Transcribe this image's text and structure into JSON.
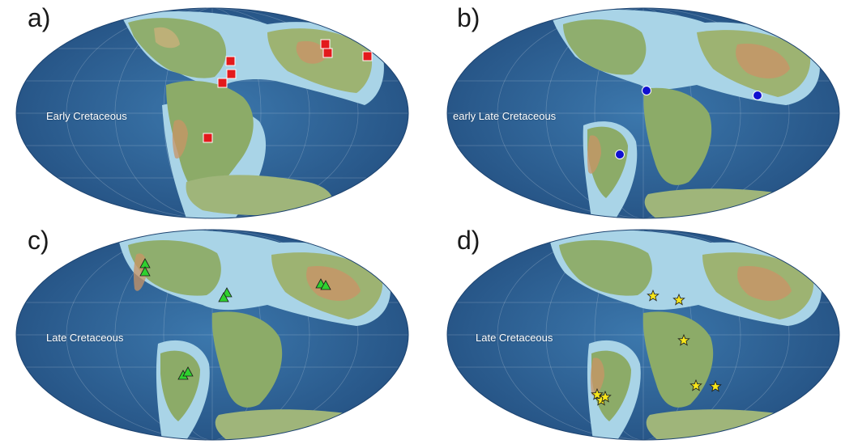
{
  "colors": {
    "ocean_deep": "#2a5f92",
    "ocean_mid": "#3c78ad",
    "shelf": "#a9d4e7",
    "land_low": "#7ea96a",
    "land_mid": "#b7b173",
    "land_high": "#c98f63",
    "square_marker": "#e31a1c",
    "circle_marker": "#1010d0",
    "triangle_marker": "#2fd12f",
    "star_marker": "#f7e61a"
  },
  "panels": [
    {
      "letter": "a)",
      "era": "Early Cretaceous",
      "marker_type": "square",
      "marker_color_name": "red",
      "marker_count": 7
    },
    {
      "letter": "b)",
      "era": "early Late Cretaceous",
      "marker_type": "circle",
      "marker_color_name": "blue",
      "marker_count": 3
    },
    {
      "letter": "c)",
      "era": "Late Cretaceous",
      "marker_type": "triangle",
      "marker_color_name": "green",
      "marker_count": 8
    },
    {
      "letter": "d)",
      "era": "Late Cretaceous",
      "marker_type": "star",
      "marker_color_name": "yellow",
      "marker_count": 8
    }
  ]
}
